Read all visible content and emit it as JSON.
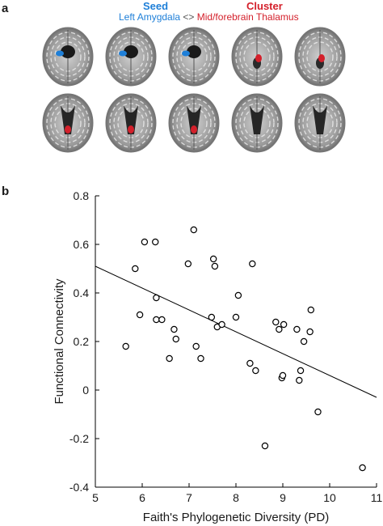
{
  "panel_a": {
    "label": "a",
    "seed_title": "Seed",
    "cluster_title": "Cluster",
    "seed_region": "Left Amygdala",
    "separator": "<>",
    "cluster_region": "Mid/forebrain Thalamus",
    "colors": {
      "seed": "#1e7fd8",
      "cluster": "#d4202b"
    },
    "slices": [
      {
        "row": 1,
        "seed_marker": true,
        "cluster_marker": false
      },
      {
        "row": 1,
        "seed_marker": true,
        "cluster_marker": false
      },
      {
        "row": 1,
        "seed_marker": true,
        "cluster_marker": false
      },
      {
        "row": 1,
        "seed_marker": false,
        "cluster_marker": true
      },
      {
        "row": 1,
        "seed_marker": false,
        "cluster_marker": true
      },
      {
        "row": 2,
        "seed_marker": false,
        "cluster_marker": true
      },
      {
        "row": 2,
        "seed_marker": false,
        "cluster_marker": true
      },
      {
        "row": 2,
        "seed_marker": false,
        "cluster_marker": true
      },
      {
        "row": 2,
        "seed_marker": false,
        "cluster_marker": false
      },
      {
        "row": 2,
        "seed_marker": false,
        "cluster_marker": false
      }
    ]
  },
  "chart_data": {
    "type": "scatter",
    "panel_label": "b",
    "xlabel": "Faith's Phylogenetic Diversity (PD)",
    "ylabel": "Functional Connectivity",
    "xlim": [
      5,
      11
    ],
    "ylim": [
      -0.4,
      0.8
    ],
    "xticks": [
      "5",
      "6",
      "7",
      "8",
      "9",
      "10",
      "11"
    ],
    "yticks": [
      "-0.4",
      "-0.2",
      "0",
      "0.2",
      "0.4",
      "0.6",
      "0.8"
    ],
    "grid": false,
    "legend": "none",
    "marker": "open-circle",
    "points": [
      [
        5.65,
        0.18
      ],
      [
        5.85,
        0.5
      ],
      [
        5.95,
        0.31
      ],
      [
        6.05,
        0.61
      ],
      [
        6.28,
        0.61
      ],
      [
        6.3,
        0.38
      ],
      [
        6.3,
        0.29
      ],
      [
        6.42,
        0.29
      ],
      [
        6.58,
        0.13
      ],
      [
        6.68,
        0.25
      ],
      [
        6.72,
        0.21
      ],
      [
        6.98,
        0.52
      ],
      [
        7.1,
        0.66
      ],
      [
        7.15,
        0.18
      ],
      [
        7.25,
        0.13
      ],
      [
        7.48,
        0.3
      ],
      [
        7.52,
        0.54
      ],
      [
        7.55,
        0.51
      ],
      [
        7.6,
        0.26
      ],
      [
        7.7,
        0.27
      ],
      [
        8.0,
        0.3
      ],
      [
        8.05,
        0.39
      ],
      [
        8.3,
        0.11
      ],
      [
        8.35,
        0.52
      ],
      [
        8.42,
        0.08
      ],
      [
        8.62,
        -0.23
      ],
      [
        8.85,
        0.28
      ],
      [
        8.92,
        0.25
      ],
      [
        8.98,
        0.05
      ],
      [
        9.02,
        0.27
      ],
      [
        9.0,
        0.06
      ],
      [
        9.3,
        0.25
      ],
      [
        9.35,
        0.04
      ],
      [
        9.38,
        0.08
      ],
      [
        9.45,
        0.2
      ],
      [
        9.58,
        0.24
      ],
      [
        9.6,
        0.33
      ],
      [
        9.75,
        -0.09
      ],
      [
        10.7,
        -0.32
      ]
    ],
    "fit_line": {
      "x": [
        5,
        11
      ],
      "y": [
        0.51,
        -0.03
      ]
    },
    "colors": {
      "marker": "#000000",
      "line": "#000000",
      "axis": "#000000"
    }
  }
}
